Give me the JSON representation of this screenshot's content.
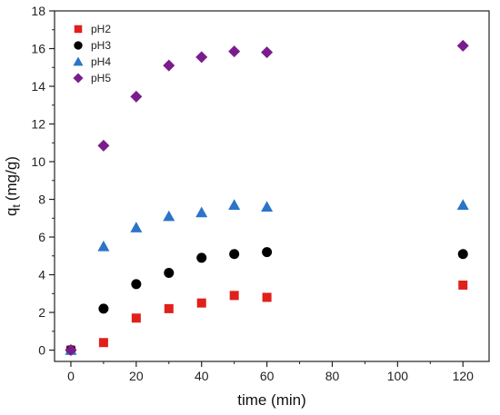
{
  "chart_data": {
    "type": "scatter",
    "xlabel": "time (min)",
    "ylabel_main": "q",
    "ylabel_sub": "t",
    "ylabel_unit": "(mg/g)",
    "xlim": [
      -5,
      128
    ],
    "ylim": [
      -0.6,
      18
    ],
    "xticks": [
      0,
      20,
      40,
      60,
      80,
      100,
      120
    ],
    "yticks": [
      0,
      2,
      4,
      6,
      8,
      10,
      12,
      14,
      16,
      18
    ],
    "legend_position": "top-left",
    "series": [
      {
        "name": "pH2",
        "marker": "square",
        "color": "#e0201b",
        "x": [
          0,
          10,
          20,
          30,
          40,
          50,
          60,
          120
        ],
        "y": [
          0,
          0.4,
          1.7,
          2.2,
          2.5,
          2.9,
          2.8,
          3.45
        ]
      },
      {
        "name": "pH3",
        "marker": "circle",
        "color": "#000000",
        "x": [
          0,
          10,
          20,
          30,
          40,
          50,
          60,
          120
        ],
        "y": [
          0,
          2.2,
          3.5,
          4.1,
          4.9,
          5.1,
          5.2,
          5.1
        ]
      },
      {
        "name": "pH4",
        "marker": "triangle",
        "color": "#2b74c8",
        "x": [
          0,
          10,
          20,
          30,
          40,
          50,
          60,
          120
        ],
        "y": [
          0,
          5.5,
          6.5,
          7.1,
          7.3,
          7.7,
          7.6,
          7.7
        ]
      },
      {
        "name": "pH5",
        "marker": "diamond",
        "color": "#7b1c8e",
        "x": [
          0,
          10,
          20,
          30,
          40,
          50,
          60,
          120
        ],
        "y": [
          0,
          10.85,
          13.45,
          15.1,
          15.55,
          15.85,
          15.8,
          16.15
        ]
      }
    ]
  }
}
